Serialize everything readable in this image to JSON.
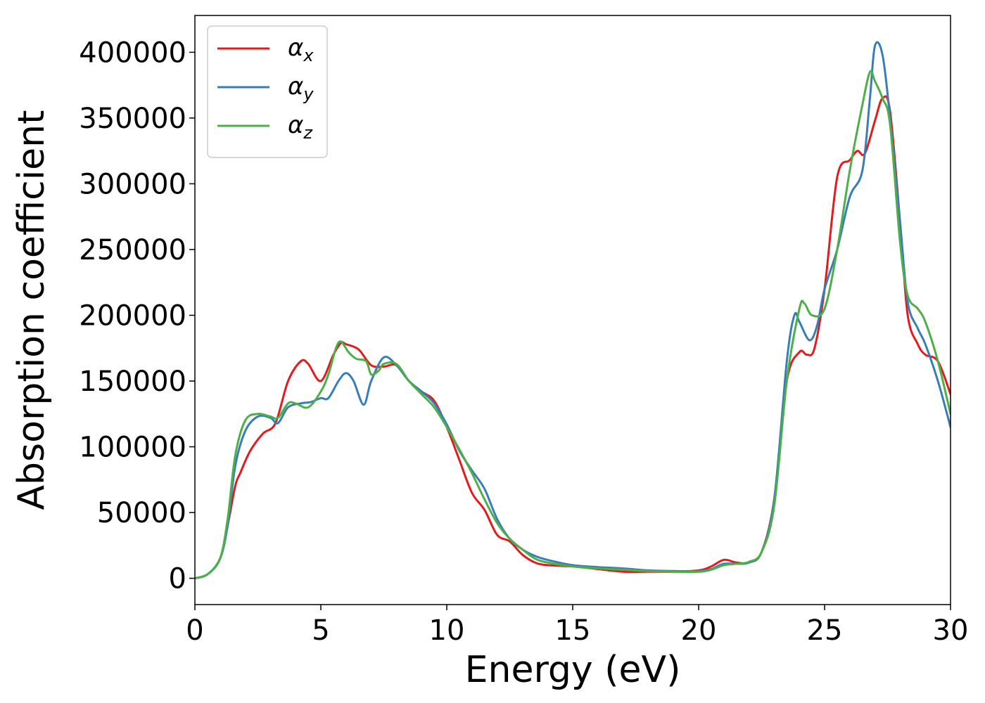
{
  "chart_data": {
    "type": "line",
    "xlabel": "Energy (eV)",
    "ylabel": "Absorption coefficient",
    "xlim": [
      0,
      30
    ],
    "ylim": [
      -20000,
      428000
    ],
    "xticks": [
      0,
      5,
      10,
      15,
      20,
      25,
      30
    ],
    "yticks": [
      0,
      50000,
      100000,
      150000,
      200000,
      250000,
      300000,
      350000,
      400000
    ],
    "grid": false,
    "legend_position": "top-left",
    "series": [
      {
        "name": "α",
        "subscript": "x",
        "color": "#e41a1c",
        "x": [
          0,
          0.5,
          1.0,
          1.3,
          1.6,
          1.8,
          2.2,
          2.7,
          3.2,
          3.7,
          4.2,
          4.5,
          5.0,
          5.5,
          5.8,
          6.0,
          6.5,
          7.0,
          7.5,
          8.0,
          8.5,
          9.0,
          9.5,
          10.0,
          10.5,
          11.0,
          11.5,
          12.0,
          12.5,
          13.0,
          13.5,
          14.0,
          15.0,
          16.0,
          17.0,
          18.0,
          19.0,
          20.0,
          20.5,
          21.0,
          21.5,
          22.0,
          22.5,
          23.0,
          23.5,
          24.0,
          24.3,
          24.6,
          25.0,
          25.5,
          26.0,
          26.3,
          26.6,
          27.0,
          27.3,
          27.6,
          28.0,
          28.3,
          28.7,
          29.0,
          29.5,
          30.0
        ],
        "y": [
          0,
          3000,
          15000,
          40000,
          70000,
          80000,
          97000,
          110000,
          118000,
          150000,
          165000,
          163000,
          150000,
          170000,
          179000,
          178000,
          174000,
          162000,
          161000,
          162000,
          150000,
          142000,
          135000,
          115000,
          90000,
          65000,
          52000,
          33000,
          28000,
          18000,
          12000,
          10000,
          9000,
          7000,
          5000,
          5000,
          5000,
          6000,
          9000,
          14000,
          12000,
          12000,
          20000,
          60000,
          150000,
          172000,
          170000,
          175000,
          220000,
          305000,
          318000,
          325000,
          323000,
          348000,
          365000,
          355000,
          270000,
          200000,
          178000,
          170000,
          165000,
          140000
        ]
      },
      {
        "name": "α",
        "subscript": "y",
        "color": "#377eb8",
        "x": [
          0,
          0.5,
          1.0,
          1.3,
          1.6,
          2.0,
          2.5,
          3.0,
          3.3,
          3.7,
          4.2,
          4.6,
          5.0,
          5.3,
          5.7,
          6.0,
          6.3,
          6.7,
          7.0,
          7.5,
          8.0,
          8.5,
          9.0,
          9.5,
          10.0,
          10.5,
          11.0,
          11.5,
          12.0,
          12.5,
          13.0,
          13.5,
          14.0,
          15.0,
          16.0,
          17.0,
          18.0,
          19.0,
          20.0,
          20.5,
          21.0,
          21.5,
          22.0,
          22.5,
          23.0,
          23.5,
          23.8,
          24.0,
          24.4,
          24.7,
          25.0,
          25.5,
          26.0,
          26.5,
          26.8,
          27.0,
          27.3,
          27.6,
          28.0,
          28.3,
          28.7,
          29.0,
          29.5,
          30.0
        ],
        "y": [
          0,
          3000,
          15000,
          40000,
          85000,
          112000,
          123000,
          122000,
          118000,
          130000,
          133000,
          134000,
          137000,
          137000,
          150000,
          156000,
          150000,
          132000,
          150000,
          168000,
          162000,
          150000,
          142000,
          133000,
          117000,
          97000,
          82000,
          68000,
          45000,
          30000,
          22000,
          17000,
          14000,
          10000,
          8500,
          7500,
          6000,
          5500,
          5500,
          7000,
          11000,
          11000,
          12000,
          20000,
          60000,
          165000,
          200000,
          195000,
          181000,
          192000,
          220000,
          250000,
          290000,
          310000,
          365000,
          405000,
          398000,
          350000,
          270000,
          210000,
          190000,
          178000,
          150000,
          115000
        ]
      },
      {
        "name": "α",
        "subscript": "z",
        "color": "#4daf4a",
        "x": [
          0,
          0.5,
          1.0,
          1.3,
          1.6,
          2.0,
          2.5,
          3.0,
          3.3,
          3.7,
          4.0,
          4.5,
          5.0,
          5.3,
          5.6,
          5.8,
          6.1,
          6.4,
          6.8,
          7.0,
          7.3,
          7.5,
          8.0,
          8.5,
          9.0,
          9.5,
          10.0,
          10.5,
          11.0,
          11.5,
          12.0,
          12.5,
          13.0,
          13.5,
          14.0,
          15.0,
          16.0,
          17.0,
          18.0,
          19.0,
          20.0,
          20.5,
          21.0,
          21.5,
          22.0,
          22.5,
          23.0,
          23.5,
          24.0,
          24.2,
          24.5,
          25.0,
          25.5,
          26.0,
          26.5,
          26.8,
          27.0,
          27.3,
          27.6,
          28.0,
          28.3,
          28.7,
          29.0,
          29.5,
          30.0
        ],
        "y": [
          0,
          3000,
          15000,
          45000,
          93000,
          120000,
          125000,
          123000,
          122000,
          133000,
          133000,
          130000,
          142000,
          155000,
          175000,
          180000,
          172000,
          167000,
          165000,
          155000,
          158000,
          163000,
          163000,
          150000,
          140000,
          130000,
          115000,
          98000,
          80000,
          60000,
          42000,
          30000,
          22000,
          15000,
          12000,
          9000,
          7500,
          6500,
          5500,
          5000,
          5000,
          6500,
          10000,
          11000,
          12500,
          20000,
          55000,
          150000,
          205000,
          209000,
          200000,
          205000,
          250000,
          310000,
          360000,
          385000,
          378000,
          365000,
          345000,
          255000,
          215000,
          205000,
          195000,
          165000,
          125000
        ]
      }
    ]
  }
}
